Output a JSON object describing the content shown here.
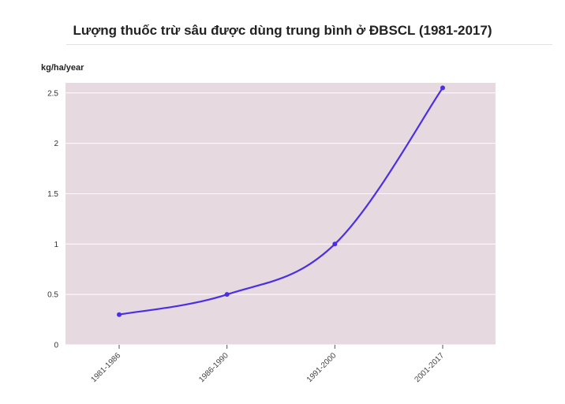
{
  "chart_data": {
    "type": "line",
    "title": "Lượng thuốc trừ sâu được dùng trung bình ở ĐBSCL (1981-2017)",
    "ylabel": "kg/ha/year",
    "xlabel": "",
    "categories": [
      "1981-1986",
      "1986-1990",
      "1991-2000",
      "2001-2017"
    ],
    "series": [
      {
        "values": [
          0.3,
          0.5,
          1.0,
          2.55
        ]
      }
    ],
    "yticks": [
      "0",
      "0.5",
      "1",
      "1.5",
      "2",
      "2.5"
    ],
    "ylim": [
      0,
      2.6
    ],
    "grid": true,
    "line_color": "#4b2ee8",
    "plot_background": "#e6d9e0",
    "gridline_color": "#ffffff"
  }
}
